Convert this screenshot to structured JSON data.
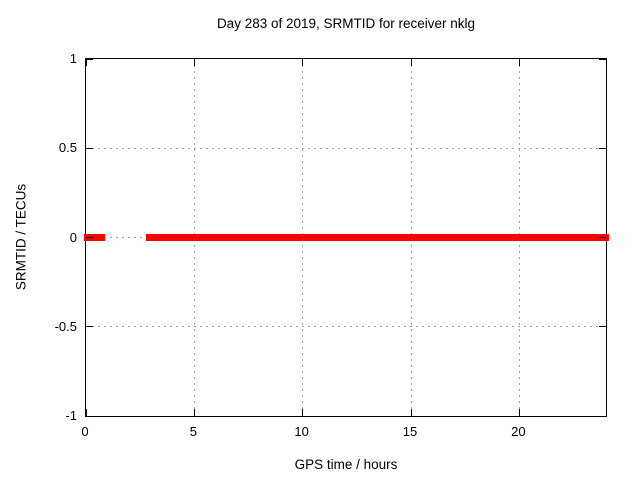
{
  "chart_data": {
    "type": "scatter",
    "title": "Day 283 of 2019, SRMTID for receiver nklg",
    "xlabel": "GPS time / hours",
    "ylabel": "SRMTID / TECUs",
    "xlim": [
      0,
      24
    ],
    "ylim": [
      -1,
      1
    ],
    "xticks": [
      {
        "value": 0,
        "label": "0"
      },
      {
        "value": 5,
        "label": "5"
      },
      {
        "value": 10,
        "label": "10"
      },
      {
        "value": 15,
        "label": "15"
      },
      {
        "value": 20,
        "label": "20"
      }
    ],
    "yticks": [
      {
        "value": -1,
        "label": "-1"
      },
      {
        "value": -0.5,
        "label": "-0.5"
      },
      {
        "value": 0,
        "label": "0"
      },
      {
        "value": 0.5,
        "label": "0.5"
      },
      {
        "value": 1,
        "label": "1"
      }
    ],
    "grid": true,
    "legend_position": "none",
    "colors": {
      "marker": "#ff0000",
      "grid": "#a0a0a0",
      "axis": "#000000",
      "background": "#ffffff"
    },
    "series": [
      {
        "name": "SRMTID",
        "marker": "filled-square",
        "color": "#ff0000",
        "y_value": 0,
        "x_segments": [
          [
            0.03,
            0.72
          ],
          [
            2.9,
            3.74
          ],
          [
            3.86,
            4.16
          ],
          [
            4.28,
            5.82
          ],
          [
            5.94,
            6.32
          ],
          [
            6.44,
            6.84
          ],
          [
            6.96,
            7.38
          ],
          [
            7.5,
            8.24
          ],
          [
            8.38,
            8.64
          ],
          [
            8.76,
            9.34
          ],
          [
            9.46,
            12.34
          ],
          [
            12.5,
            16.88
          ],
          [
            17.04,
            18.64
          ],
          [
            18.78,
            20.88
          ],
          [
            21.04,
            22.08
          ],
          [
            22.24,
            22.54
          ],
          [
            22.66,
            24.0
          ]
        ]
      }
    ]
  }
}
